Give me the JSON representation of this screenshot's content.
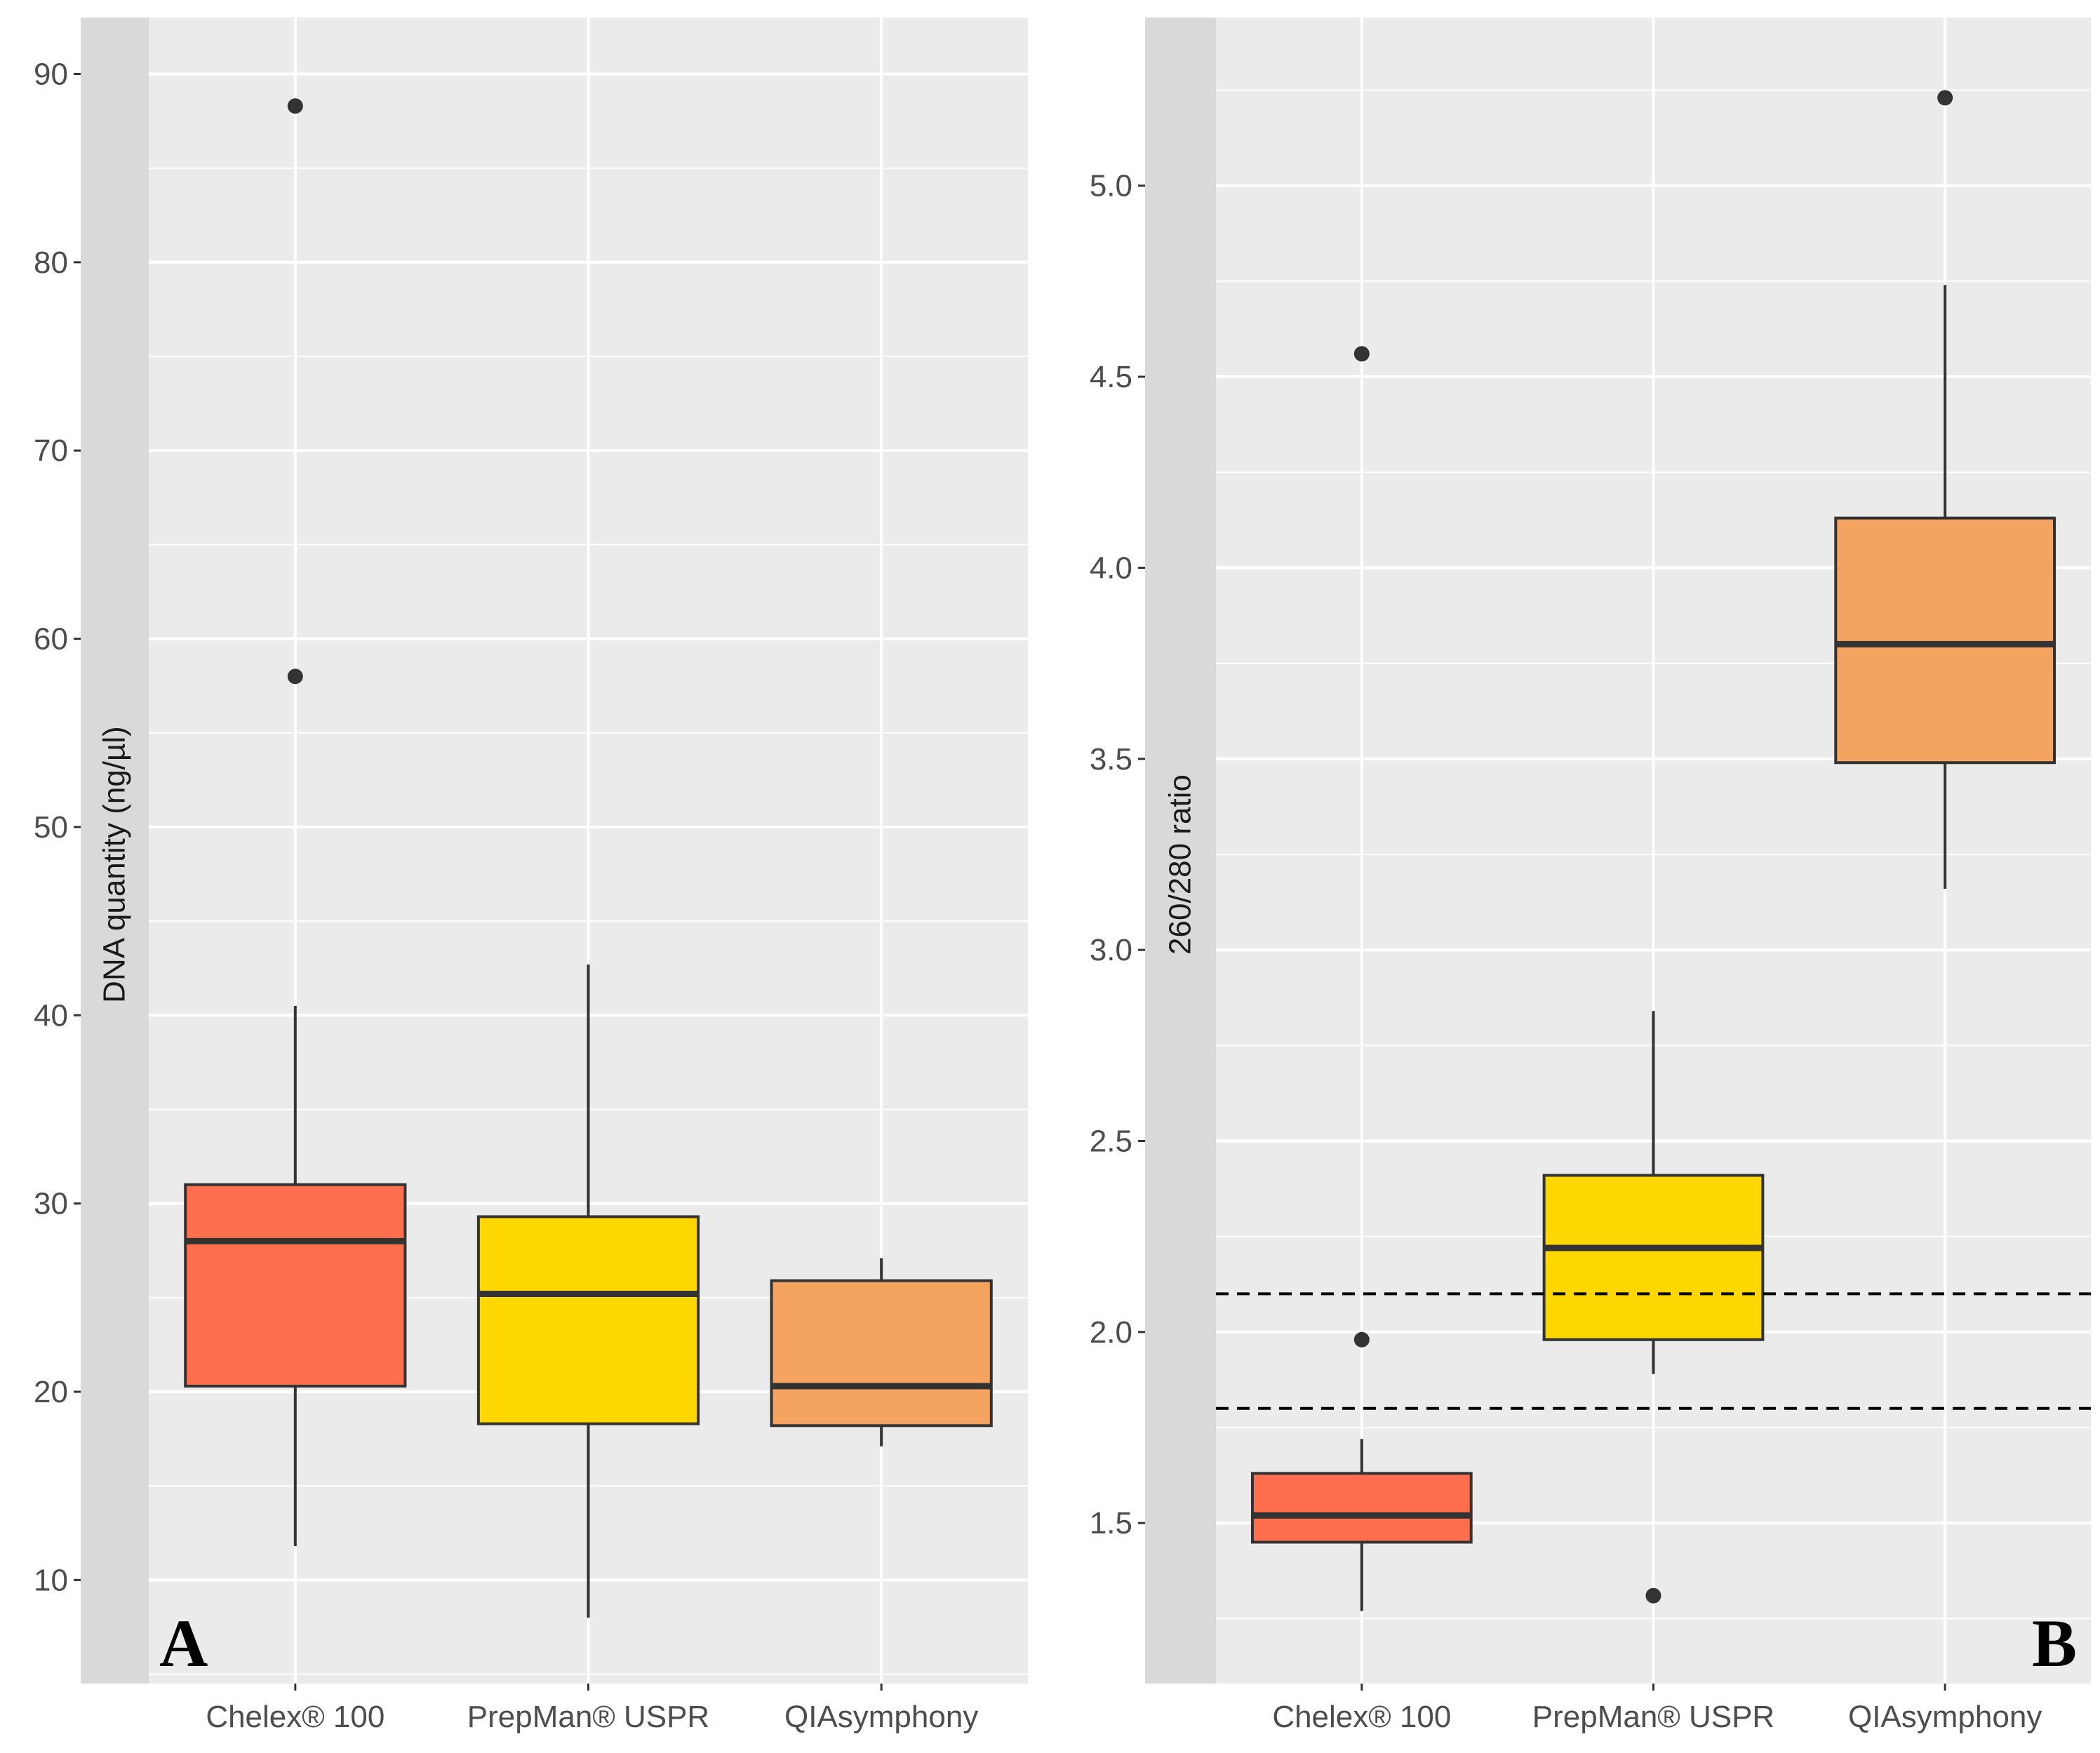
{
  "chart_data": [
    {
      "type": "box",
      "panel_label": "A",
      "title": "",
      "xlabel": "",
      "ylabel": "DNA quantity (ng/µl)",
      "ylim": [
        4.5,
        93
      ],
      "yticks": [
        10,
        20,
        30,
        40,
        50,
        60,
        70,
        80,
        90
      ],
      "ytick_labels": [
        "10",
        "20",
        "30",
        "40",
        "50",
        "60",
        "70",
        "80",
        "90"
      ],
      "grid": true,
      "categories": [
        "Chelex® 100",
        "PrepMan® USPR",
        "QIAsymphony"
      ],
      "colors": [
        "#FF6F4E",
        "#FFD700",
        "#F4A460"
      ],
      "boxes": [
        {
          "whisker_low": 11.8,
          "q1": 20.3,
          "median": 28.0,
          "q3": 31.0,
          "whisker_high": 40.5,
          "outliers": [
            58.0,
            88.3
          ]
        },
        {
          "whisker_low": 8.0,
          "q1": 18.3,
          "median": 25.2,
          "q3": 29.3,
          "whisker_high": 42.7,
          "outliers": []
        },
        {
          "whisker_low": 17.1,
          "q1": 18.2,
          "median": 20.3,
          "q3": 25.9,
          "whisker_high": 27.1,
          "outliers": []
        }
      ],
      "reference_lines": []
    },
    {
      "type": "box",
      "panel_label": "B",
      "title": "",
      "xlabel": "",
      "ylabel": "260/280 ratio",
      "ylim": [
        1.08,
        5.44
      ],
      "yticks": [
        1.5,
        2.0,
        2.5,
        3.0,
        3.5,
        4.0,
        4.5,
        5.0
      ],
      "ytick_labels": [
        "1.5",
        "2.0",
        "2.5",
        "3.0",
        "3.5",
        "4.0",
        "4.5",
        "5.0"
      ],
      "grid": true,
      "categories": [
        "Chelex® 100",
        "PrepMan® USPR",
        "QIAsymphony"
      ],
      "colors": [
        "#FF6F4E",
        "#FFD700",
        "#F4A460"
      ],
      "boxes": [
        {
          "whisker_low": 1.27,
          "q1": 1.45,
          "median": 1.52,
          "q3": 1.63,
          "whisker_high": 1.72,
          "outliers": [
            1.98,
            4.56
          ]
        },
        {
          "whisker_low": 1.89,
          "q1": 1.98,
          "median": 2.22,
          "q3": 2.41,
          "whisker_high": 2.84,
          "outliers": [
            1.31
          ]
        },
        {
          "whisker_low": 3.16,
          "q1": 3.49,
          "median": 3.8,
          "q3": 4.13,
          "whisker_high": 4.74,
          "outliers": [
            5.23
          ]
        }
      ],
      "reference_lines": [
        {
          "y": 1.8,
          "style": "dashed"
        },
        {
          "y": 2.1,
          "style": "dashed"
        }
      ]
    }
  ]
}
